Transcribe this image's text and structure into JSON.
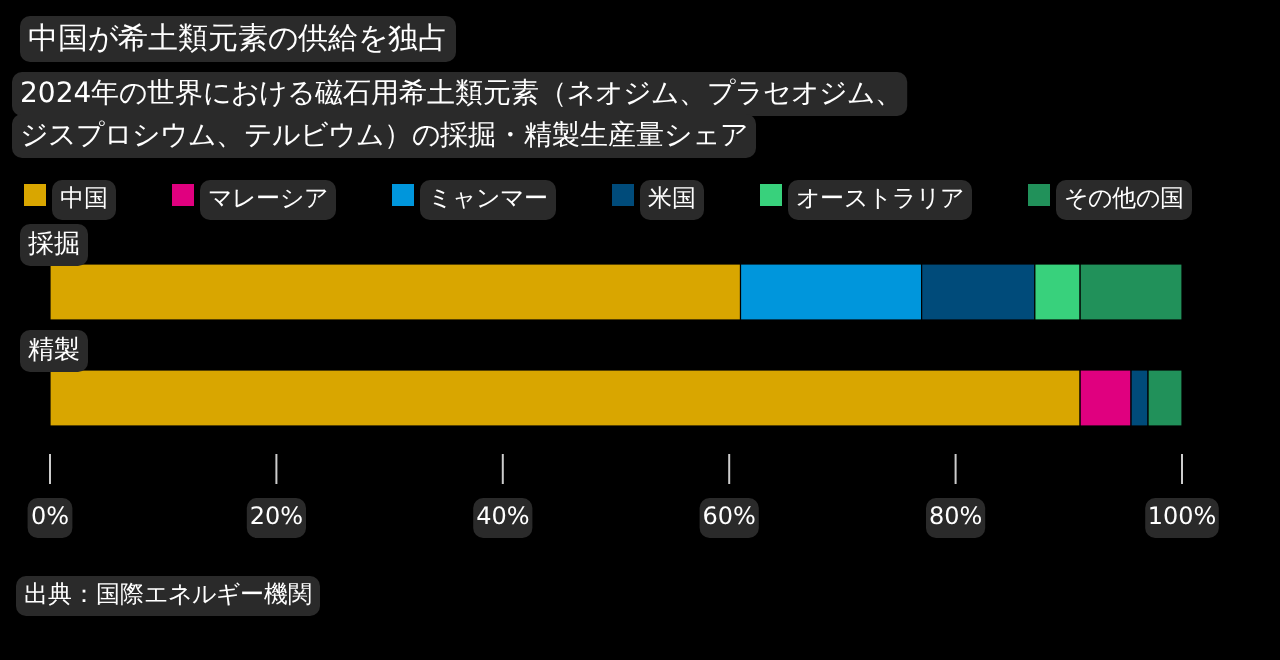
{
  "chart_data": {
    "type": "bar",
    "orientation": "horizontal",
    "stacked": true,
    "title": "中国が希土類元素の供給を独占",
    "subtitle": "2024年の世界における磁石用希土類元素（ネオジム、プラセオジム、ジスプロシウム、テルビウム）の採掘・精製生産量シェア",
    "categories": [
      "採掘",
      "精製"
    ],
    "series": [
      {
        "name": "中国",
        "color": "#d9a600",
        "values": [
          61,
          91
        ]
      },
      {
        "name": "マレーシア",
        "color": "#e0007f",
        "values": [
          0,
          4.5
        ]
      },
      {
        "name": "ミャンマー",
        "color": "#0096dc",
        "values": [
          16,
          0
        ]
      },
      {
        "name": "米国",
        "color": "#004b7a",
        "values": [
          10,
          1.5
        ]
      },
      {
        "name": "オーストラリア",
        "color": "#38d17c",
        "values": [
          4,
          0
        ]
      },
      {
        "name": "その他の国",
        "color": "#21915a",
        "values": [
          9,
          3
        ]
      }
    ],
    "xlim": [
      0,
      100
    ],
    "xticks": [
      {
        "value": 0,
        "label": "0%"
      },
      {
        "value": 20,
        "label": "20%"
      },
      {
        "value": 40,
        "label": "40%"
      },
      {
        "value": 60,
        "label": "60%"
      },
      {
        "value": 80,
        "label": "80%"
      },
      {
        "value": 100,
        "label": "100%"
      }
    ],
    "legend": "top",
    "grid": false,
    "annotations": [
      "出典：国際エネルギー機関"
    ]
  }
}
